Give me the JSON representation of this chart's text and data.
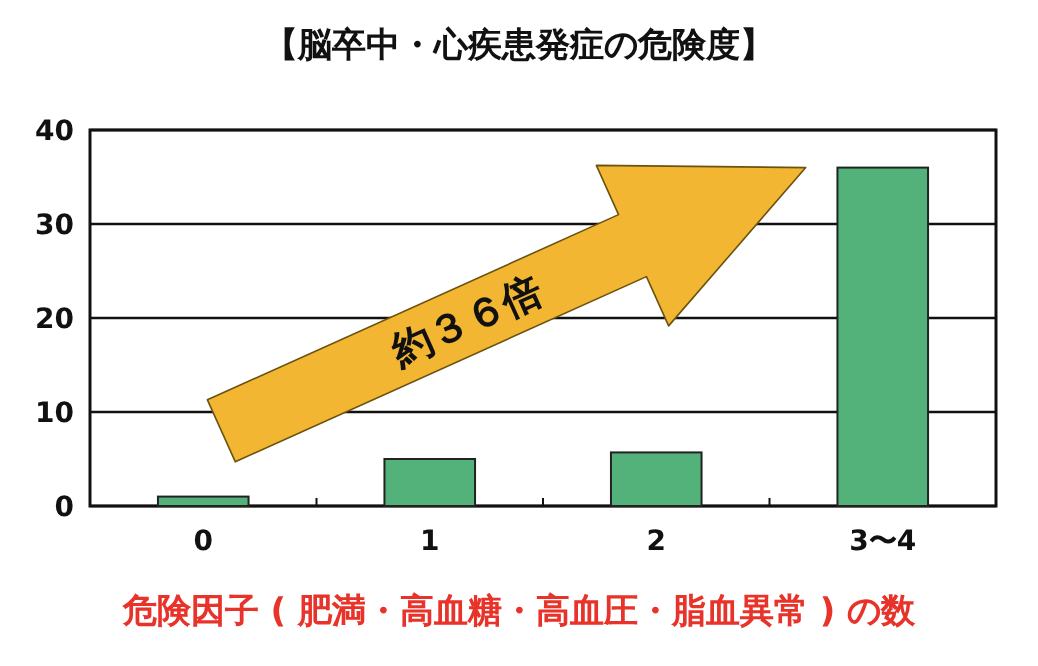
{
  "chart_data": {
    "type": "bar",
    "title": "【脳卒中・心疾患発症の危険度】",
    "xlabel": "危険因子 ( 肥満・高血糖・高血圧・脂血異常 ) の数",
    "categories": [
      "0",
      "1",
      "2",
      "3〜4"
    ],
    "values": [
      1,
      5,
      5.7,
      36
    ],
    "color": "#52b27a",
    "ylim": [
      0,
      40
    ],
    "yticks": [
      0,
      10,
      20,
      30,
      40
    ],
    "grid": "y",
    "annotations": [
      "約３６倍"
    ]
  }
}
